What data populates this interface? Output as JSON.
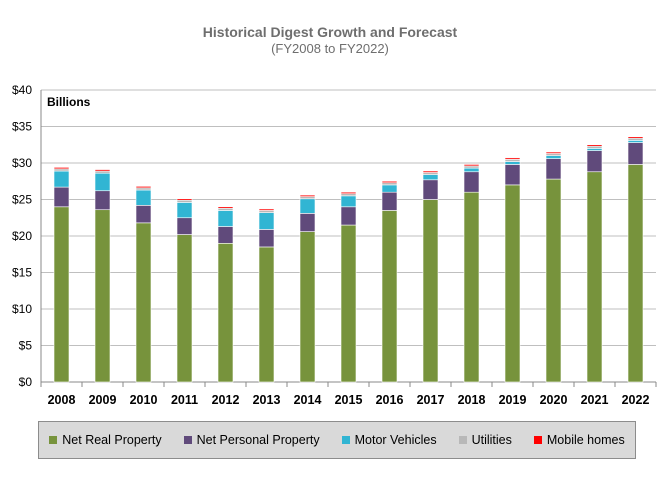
{
  "chart_data": {
    "type": "bar",
    "stacked": true,
    "title": "Historical Digest Growth and Forecast",
    "subtitle": "(FY2008 to FY2022)",
    "unit_label": "Billions",
    "yticks": [
      "$0",
      "$5",
      "$10",
      "$15",
      "$20",
      "$25",
      "$30",
      "$35",
      "$40"
    ],
    "ylim": [
      0,
      40
    ],
    "grid": true,
    "legend_position": "bottom",
    "categories": [
      "2008",
      "2009",
      "2010",
      "2011",
      "2012",
      "2013",
      "2014",
      "2015",
      "2016",
      "2017",
      "2018",
      "2019",
      "2020",
      "2021",
      "2022"
    ],
    "series": [
      {
        "name": "Net Real Property",
        "color": "#77933c",
        "values": [
          24.0,
          23.6,
          21.8,
          20.2,
          19.0,
          18.5,
          20.6,
          21.5,
          23.5,
          25.0,
          26.0,
          27.0,
          27.8,
          28.8,
          29.8
        ]
      },
      {
        "name": "Net Personal Property",
        "color": "#604a7b",
        "values": [
          2.7,
          2.6,
          2.4,
          2.3,
          2.3,
          2.4,
          2.5,
          2.5,
          2.5,
          2.7,
          2.8,
          2.8,
          2.8,
          2.9,
          3.0
        ]
      },
      {
        "name": "Motor Vehicles",
        "color": "#31b5d3",
        "values": [
          2.2,
          2.4,
          2.1,
          2.1,
          2.2,
          2.3,
          2.0,
          1.5,
          1.0,
          0.7,
          0.5,
          0.4,
          0.4,
          0.3,
          0.3
        ]
      },
      {
        "name": "Utilities",
        "color": "#b8b8b8",
        "values": [
          0.3,
          0.3,
          0.3,
          0.3,
          0.3,
          0.3,
          0.3,
          0.3,
          0.3,
          0.3,
          0.3,
          0.3,
          0.3,
          0.3,
          0.3
        ]
      },
      {
        "name": "Mobile homes",
        "color": "#ff0000",
        "values": [
          0.2,
          0.2,
          0.2,
          0.2,
          0.2,
          0.2,
          0.2,
          0.2,
          0.2,
          0.2,
          0.2,
          0.2,
          0.2,
          0.2,
          0.2
        ]
      }
    ]
  }
}
